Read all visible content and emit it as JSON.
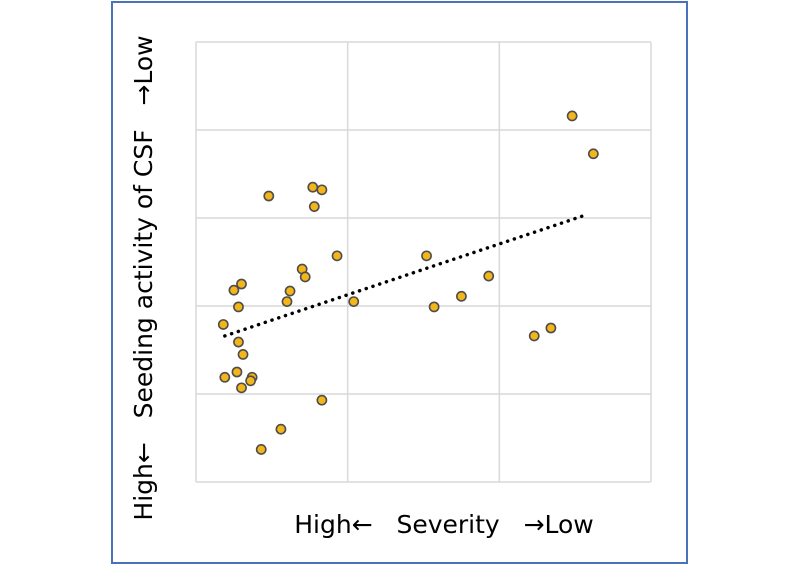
{
  "chart_data": {
    "type": "scatter",
    "title": "",
    "xlabel": "High←   Severity   →Low",
    "ylabel": "High←   Seeding activity of CSF   →Low",
    "xlim": [
      0,
      3
    ],
    "ylim": [
      0,
      5
    ],
    "grid": true,
    "legend": "none",
    "colors": {
      "marker_fill": "#f2b51a",
      "marker_edge": "#4d4d4d",
      "trendline": "#000000",
      "grid": "#d9d9d9",
      "frame": "#4a72b8"
    },
    "series": [
      {
        "points": [
          [
            0.48,
            3.25
          ],
          [
            0.77,
            3.35
          ],
          [
            0.78,
            3.13
          ],
          [
            0.83,
            3.32
          ],
          [
            0.93,
            2.57
          ],
          [
            1.52,
            2.57
          ],
          [
            0.7,
            2.42
          ],
          [
            0.72,
            2.33
          ],
          [
            0.6,
            2.05
          ],
          [
            0.3,
            2.25
          ],
          [
            0.25,
            2.18
          ],
          [
            0.28,
            1.99
          ],
          [
            0.62,
            2.17
          ],
          [
            1.04,
            2.05
          ],
          [
            0.18,
            1.79
          ],
          [
            0.28,
            1.59
          ],
          [
            0.31,
            1.45
          ],
          [
            0.19,
            1.19
          ],
          [
            0.27,
            1.25
          ],
          [
            0.37,
            1.19
          ],
          [
            0.36,
            1.15
          ],
          [
            0.3,
            1.07
          ],
          [
            0.83,
            0.93
          ],
          [
            0.56,
            0.6
          ],
          [
            0.43,
            0.37
          ],
          [
            1.57,
            1.99
          ],
          [
            1.75,
            2.11
          ],
          [
            1.93,
            2.34
          ],
          [
            2.23,
            1.66
          ],
          [
            2.34,
            1.75
          ],
          [
            2.48,
            4.16
          ],
          [
            2.62,
            3.73
          ]
        ]
      }
    ],
    "trendline": {
      "style": "dotted",
      "x": [
        0.19,
        2.58
      ],
      "y": [
        1.66,
        3.04
      ]
    }
  }
}
